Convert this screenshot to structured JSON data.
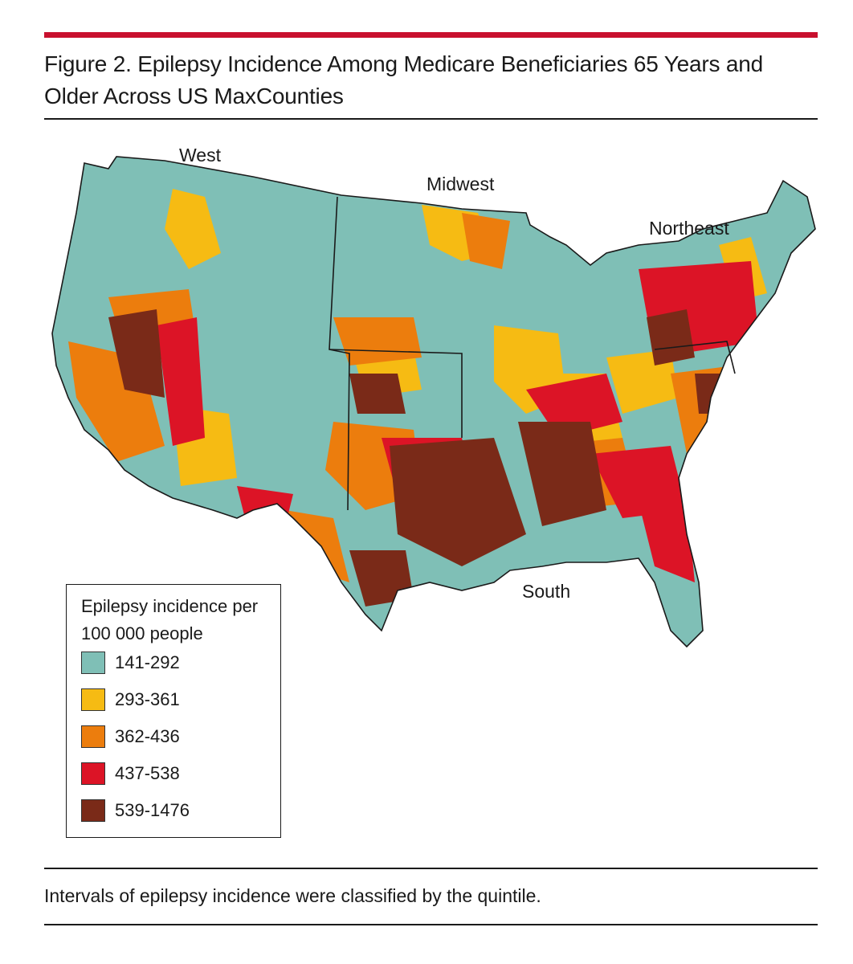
{
  "figure": {
    "title": "Figure 2. Epilepsy Incidence Among Medicare Beneficiaries 65 Years and Older Across US MaxCounties",
    "caption": "Intervals of epilepsy incidence were classified by the quintile.",
    "accent_color": "#c8102e"
  },
  "map": {
    "regions": [
      {
        "label": "West"
      },
      {
        "label": "Midwest"
      },
      {
        "label": "Northeast"
      },
      {
        "label": "South"
      }
    ]
  },
  "legend": {
    "title": "Epilepsy incidence per 100 000 people",
    "items": [
      {
        "label": "141-292",
        "color": "#7fbfb6"
      },
      {
        "label": "293-361",
        "color": "#f6bb13"
      },
      {
        "label": "362-436",
        "color": "#ec7d0d"
      },
      {
        "label": "437-538",
        "color": "#dc1426"
      },
      {
        "label": "539-1476",
        "color": "#7a2a18"
      }
    ]
  }
}
